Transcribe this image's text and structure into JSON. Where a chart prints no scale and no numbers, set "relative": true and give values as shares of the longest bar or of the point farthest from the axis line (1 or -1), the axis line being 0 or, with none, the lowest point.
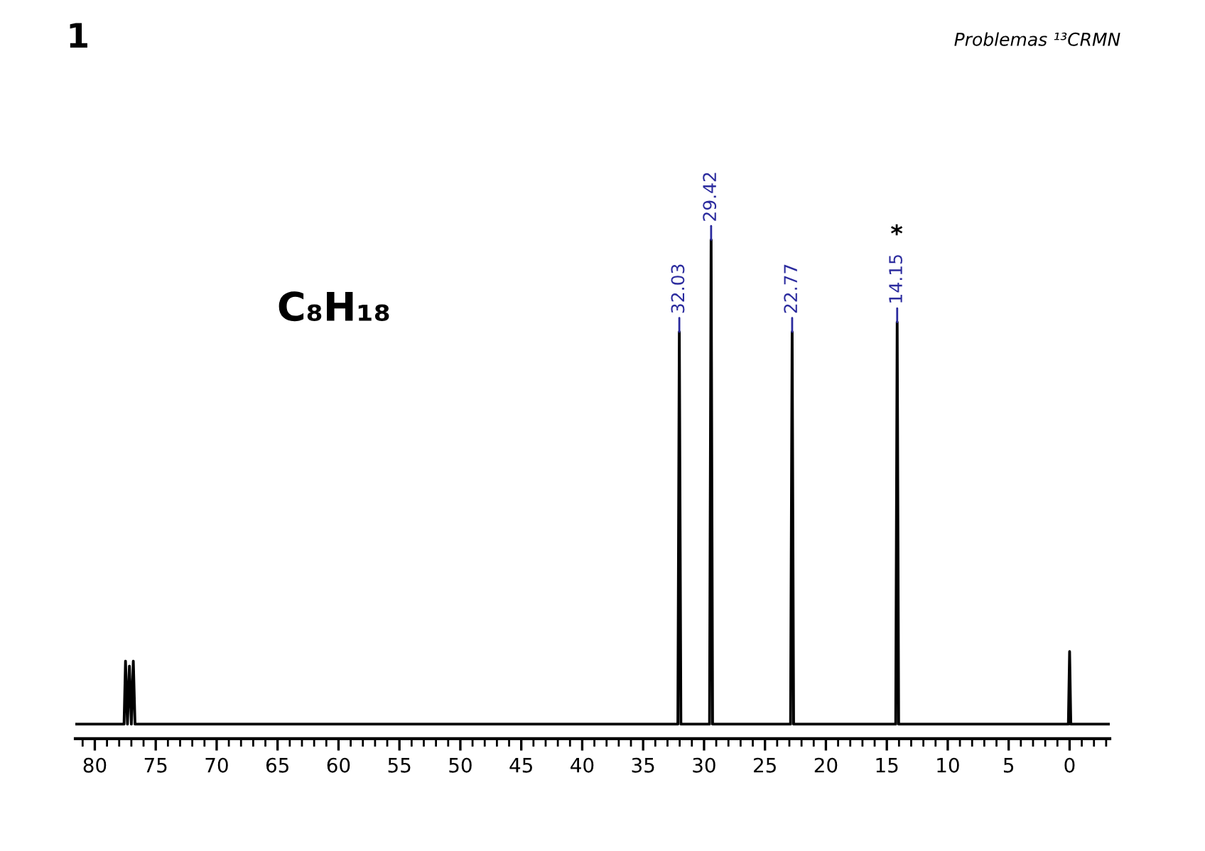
{
  "chart_data": {
    "type": "line",
    "title": "1",
    "subtitle": "Problemas ¹³CRMN",
    "relative": true,
    "tick_labels": "x",
    "xlim": [
      81.6,
      -3.3
    ],
    "xticks": [
      80,
      75,
      70,
      65,
      60,
      55,
      50,
      45,
      40,
      35,
      30,
      25,
      20,
      15,
      10,
      5,
      0
    ],
    "series": [
      {
        "color": "#000000",
        "x": [
          81.6,
          77.6,
          77.48,
          77.32,
          77.16,
          77.0,
          76.84,
          76.7,
          32.15,
          32.03,
          31.9,
          29.55,
          29.42,
          29.3,
          22.9,
          22.77,
          22.65,
          14.27,
          14.15,
          14.03,
          0.1,
          0,
          -0.1,
          -3.3
        ],
        "values": [
          0,
          0,
          0.13,
          0,
          0.12,
          0,
          0.13,
          0,
          0,
          0.81,
          0,
          0,
          1,
          0,
          0,
          0.81,
          0,
          0,
          0.83,
          0,
          0,
          0.15,
          0,
          0
        ]
      }
    ],
    "annotations": [
      {
        "text": "32.03",
        "x": 32.03,
        "y": 0.81
      },
      {
        "text": "29.42",
        "x": 29.42,
        "y": 1
      },
      {
        "text": "22.77",
        "x": 22.77,
        "y": 0.81
      },
      {
        "text": "14.15",
        "x": 14.15,
        "y": 0.83
      },
      "*",
      "C₈H₁₈"
    ]
  }
}
